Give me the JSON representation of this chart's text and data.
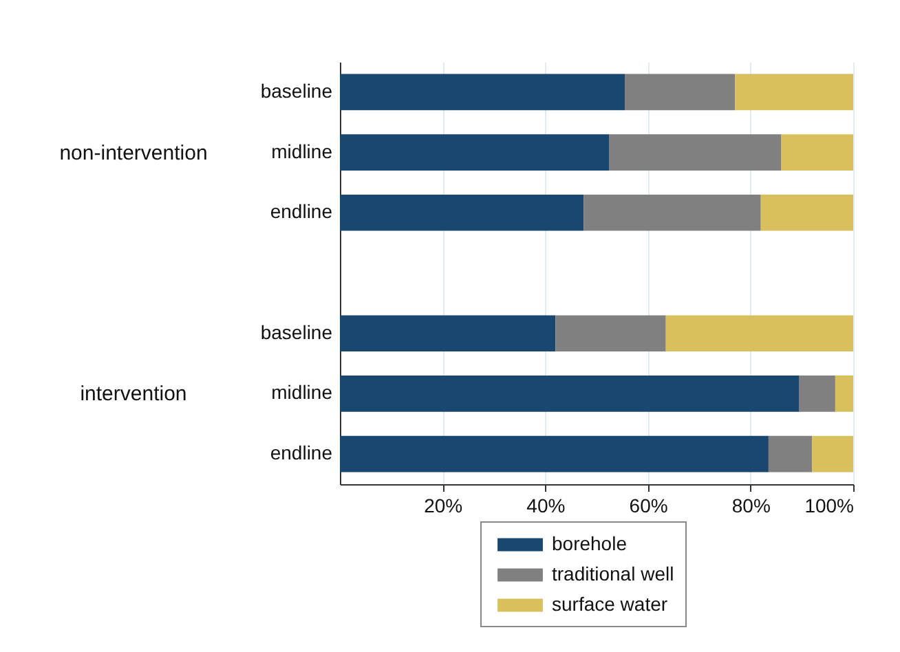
{
  "chart_data": {
    "type": "bar",
    "orientation": "horizontal",
    "stacked": true,
    "categories": [
      "baseline",
      "midline",
      "endline",
      null,
      "baseline",
      "midline",
      "endline"
    ],
    "series": [
      {
        "name": "borehole",
        "color": "#1a476f",
        "values": [
          55.5,
          52.5,
          47.5,
          null,
          42,
          89.5,
          83.5
        ]
      },
      {
        "name": "traditional well",
        "color": "#808080",
        "values": [
          21.5,
          33.5,
          34.5,
          null,
          21.5,
          7,
          8.5
        ]
      },
      {
        "name": "surface water",
        "color": "#d8c05f",
        "values": [
          23,
          14,
          18,
          null,
          36.5,
          3.5,
          8
        ]
      }
    ],
    "annotations": [
      "non-intervention",
      "intervention"
    ],
    "xlim": [
      0,
      100
    ],
    "xticks": [
      {
        "value": 20,
        "label": "20%"
      },
      {
        "value": 40,
        "label": "40%"
      },
      {
        "value": 60,
        "label": "60%"
      },
      {
        "value": 80,
        "label": "80%"
      },
      {
        "value": 100,
        "label": "100%"
      }
    ],
    "grid": "x",
    "legend": "bottom"
  }
}
